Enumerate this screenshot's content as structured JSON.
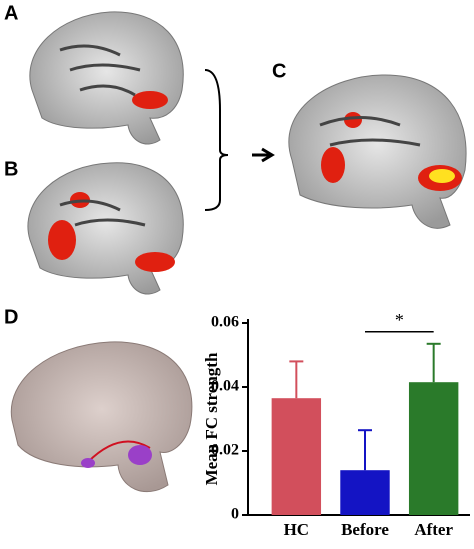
{
  "panels": {
    "labels": [
      "A",
      "B",
      "C",
      "D"
    ]
  },
  "chart_data": {
    "type": "bar",
    "ylabel": "Mean FC strength",
    "categories": [
      "HC",
      "Before",
      "After"
    ],
    "values": [
      0.0365,
      0.014,
      0.0415
    ],
    "errors": [
      0.0115,
      0.0125,
      0.012
    ],
    "colors": [
      "#d24f5c",
      "#1414c4",
      "#2a7a2a"
    ],
    "ylim": [
      0,
      0.06
    ],
    "yticks": [
      0,
      0.02,
      0.04,
      0.06
    ],
    "annotation": "*"
  }
}
